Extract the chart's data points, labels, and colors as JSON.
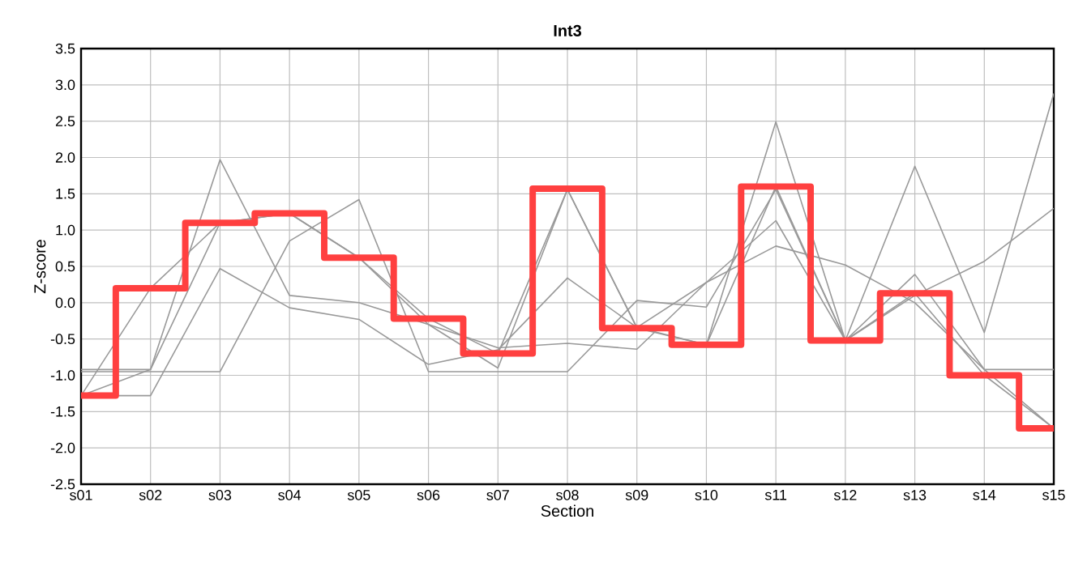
{
  "chart_data": {
    "type": "line",
    "title": "Int3",
    "xlabel": "Section",
    "ylabel": "Z-score",
    "categories": [
      "s01",
      "s02",
      "s03",
      "s04",
      "s05",
      "s06",
      "s07",
      "s08",
      "s09",
      "s10",
      "s11",
      "s12",
      "s13",
      "s14",
      "s15"
    ],
    "ylim": [
      -2.5,
      3.5
    ],
    "yticks": [
      -2.5,
      {
        "value": -2,
        "label": "-2.0"
      },
      -1.5,
      {
        "value": -1,
        "label": "-1.0"
      },
      -0.5,
      {
        "value": 0,
        "label": "0.0"
      },
      0.5,
      {
        "value": 1,
        "label": "1.0"
      },
      1.5,
      {
        "value": 2,
        "label": "2.0"
      },
      2.5,
      {
        "value": 3,
        "label": "3.0"
      },
      3.5
    ],
    "grid": true,
    "series": [
      {
        "color": "#999999",
        "values": [
          -1.28,
          0.2,
          1.1,
          1.23,
          0.62,
          -0.22,
          -0.7,
          1.56,
          -0.35,
          -0.58,
          1.6,
          -0.52,
          0.13,
          -1.0,
          -1.73
        ]
      },
      {
        "color": "#999999",
        "values": [
          -1.28,
          -1.28,
          0.47,
          -0.07,
          -0.23,
          -0.85,
          -0.65,
          0.34,
          -0.34,
          0.28,
          1.13,
          -0.52,
          0.39,
          -0.92,
          -1.73
        ]
      },
      {
        "color": "#999999",
        "values": [
          -0.92,
          -0.92,
          1.97,
          0.1,
          0.0,
          -0.3,
          -0.9,
          1.56,
          -0.34,
          -0.58,
          2.49,
          -0.52,
          1.88,
          -0.41,
          2.88
        ]
      },
      {
        "color": "#999999",
        "values": [
          -0.95,
          -0.95,
          -0.95,
          0.85,
          1.42,
          -0.95,
          -0.95,
          -0.95,
          0.03,
          -0.06,
          1.56,
          -0.52,
          0.1,
          0.57,
          1.3
        ]
      },
      {
        "color": "#999999",
        "values": [
          -1.28,
          -0.92,
          1.1,
          1.23,
          0.62,
          -0.3,
          -0.62,
          -0.56,
          -0.64,
          0.28,
          0.78,
          0.52,
          0.0,
          -0.92,
          -0.92
        ]
      },
      {
        "type": "step",
        "color": "#ff4040",
        "values": [
          -1.28,
          0.2,
          1.1,
          1.23,
          0.62,
          -0.22,
          -0.7,
          1.57,
          -0.35,
          -0.58,
          1.6,
          -0.52,
          0.13,
          -1.0,
          -1.73
        ]
      }
    ]
  }
}
